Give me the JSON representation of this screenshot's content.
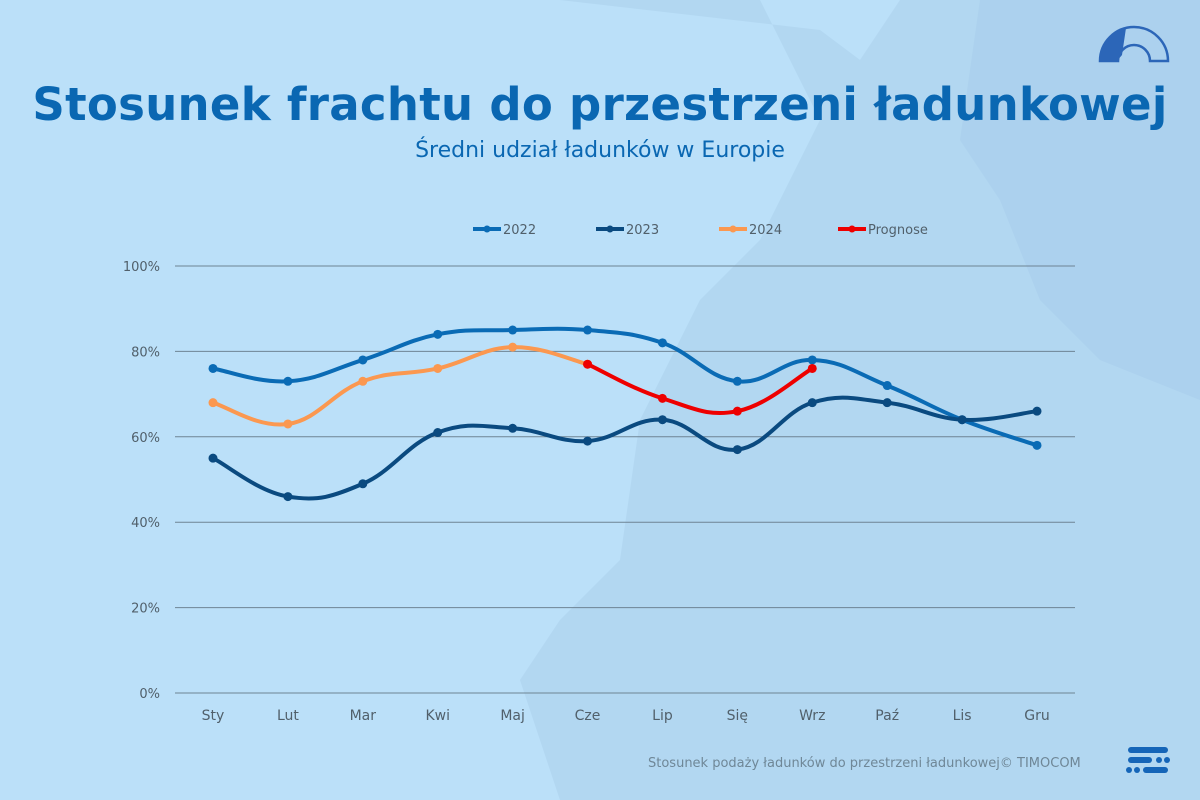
{
  "header": {
    "title": "Stosunek frachtu do przestrzeni ładunkowej",
    "subtitle": "Średni udział ładunków w Europie"
  },
  "footer": {
    "source": "Stosunek podaży ładunków do przestrzeni ładunkowej© TIMOCOM"
  },
  "icons": {
    "top_right": "gauge-icon",
    "bottom_right": "timocom-logo"
  },
  "chart_data": {
    "type": "line",
    "title": "",
    "xlabel": "",
    "ylabel": "",
    "categories": [
      "Sty",
      "Lut",
      "Mar",
      "Kwi",
      "Maj",
      "Cze",
      "Lip",
      "Się",
      "Wrz",
      "Paź",
      "Lis",
      "Gru"
    ],
    "ylim": [
      0,
      100
    ],
    "yticks": [
      "0%",
      "20%",
      "40%",
      "60%",
      "80%",
      "100%"
    ],
    "grid": true,
    "smooth": true,
    "legend_position": "top",
    "series": [
      {
        "name": "2022",
        "color": "#0a6bb5",
        "values": [
          76,
          73,
          78,
          84,
          85,
          85,
          82,
          73,
          78,
          72,
          64,
          58
        ]
      },
      {
        "name": "2023",
        "color": "#0a4a80",
        "values": [
          55,
          46,
          49,
          61,
          62,
          59,
          64,
          57,
          68,
          68,
          64,
          66
        ]
      },
      {
        "name": "2024",
        "color": "#fb9850",
        "values": [
          68,
          63,
          73,
          76,
          81,
          77,
          null,
          null,
          null,
          null,
          null,
          null
        ]
      },
      {
        "name": "Prognose",
        "color": "#ee0000",
        "values": [
          null,
          null,
          null,
          null,
          null,
          77,
          69,
          66,
          76,
          null,
          null,
          null
        ]
      }
    ]
  }
}
